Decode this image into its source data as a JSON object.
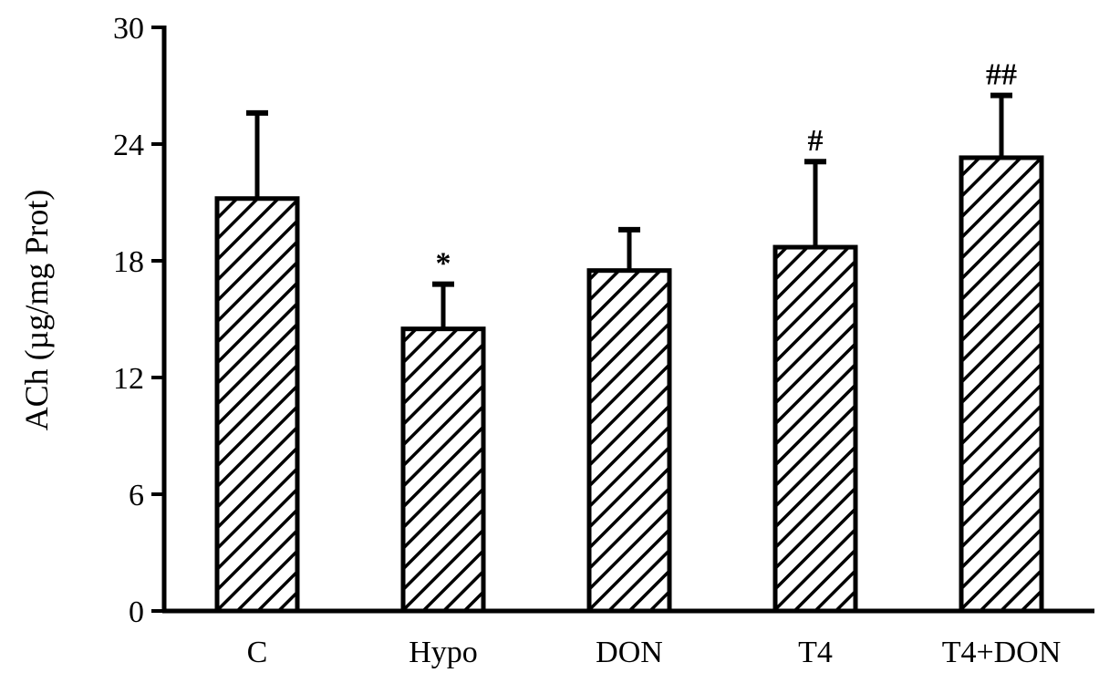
{
  "chart_data": {
    "type": "bar",
    "title": "",
    "xlabel": "",
    "ylabel": "ACh (µg/mg Prot)",
    "ylim": [
      0,
      30
    ],
    "yticks": [
      0,
      6,
      12,
      18,
      24,
      30
    ],
    "categories": [
      "C",
      "Hypo",
      "DON",
      "T4",
      "T4+DON"
    ],
    "series": [
      {
        "values": [
          21.2,
          14.5,
          17.5,
          18.7,
          23.3
        ],
        "errors": [
          4.4,
          2.3,
          2.1,
          4.4,
          3.2
        ],
        "annotations": [
          "",
          "*",
          "",
          "#",
          "##"
        ],
        "fill": "hatched"
      }
    ],
    "grid": false,
    "legend": "none",
    "colors": {
      "bar_stroke": "#000000",
      "hatch": "#000000",
      "background": "#ffffff"
    }
  }
}
